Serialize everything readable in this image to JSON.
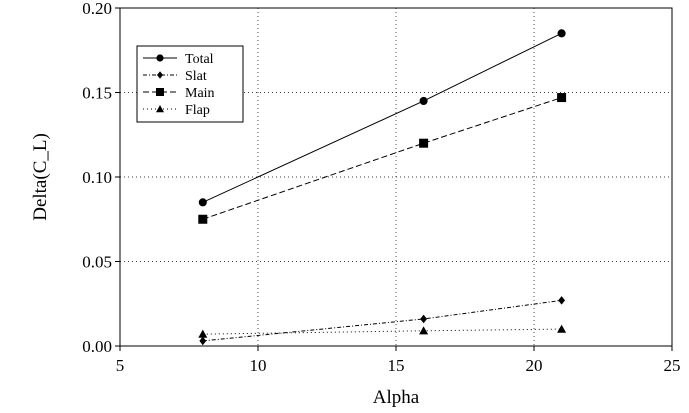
{
  "chart_data": {
    "type": "line",
    "title": "",
    "xlabel": "Alpha",
    "ylabel": "Delta(C_L)",
    "xlim": [
      5,
      25
    ],
    "ylim": [
      0,
      0.2
    ],
    "x_ticks": [
      5,
      10,
      15,
      20,
      25
    ],
    "y_ticks": [
      0,
      0.05,
      0.1,
      0.15,
      0.2
    ],
    "x_tick_labels": [
      "5",
      "10",
      "15",
      "20",
      "25"
    ],
    "y_tick_labels": [
      "0.00",
      "0.05",
      "0.10",
      "0.15",
      "0.20"
    ],
    "grid": true,
    "legend_position": "top-left",
    "series": [
      {
        "name": "Total",
        "marker": "circle",
        "line_style": "solid",
        "x": [
          8,
          16,
          21
        ],
        "y": [
          0.085,
          0.145,
          0.185
        ]
      },
      {
        "name": "Slat",
        "marker": "diamond",
        "line_style": "dash-dot",
        "x": [
          8,
          16,
          21
        ],
        "y": [
          0.003,
          0.016,
          0.027
        ]
      },
      {
        "name": "Main",
        "marker": "square",
        "line_style": "dashed",
        "x": [
          8,
          16,
          21
        ],
        "y": [
          0.075,
          0.12,
          0.147
        ]
      },
      {
        "name": "Flap",
        "marker": "triangle",
        "line_style": "dotted",
        "x": [
          8,
          16,
          21
        ],
        "y": [
          0.007,
          0.009,
          0.01
        ]
      }
    ]
  }
}
